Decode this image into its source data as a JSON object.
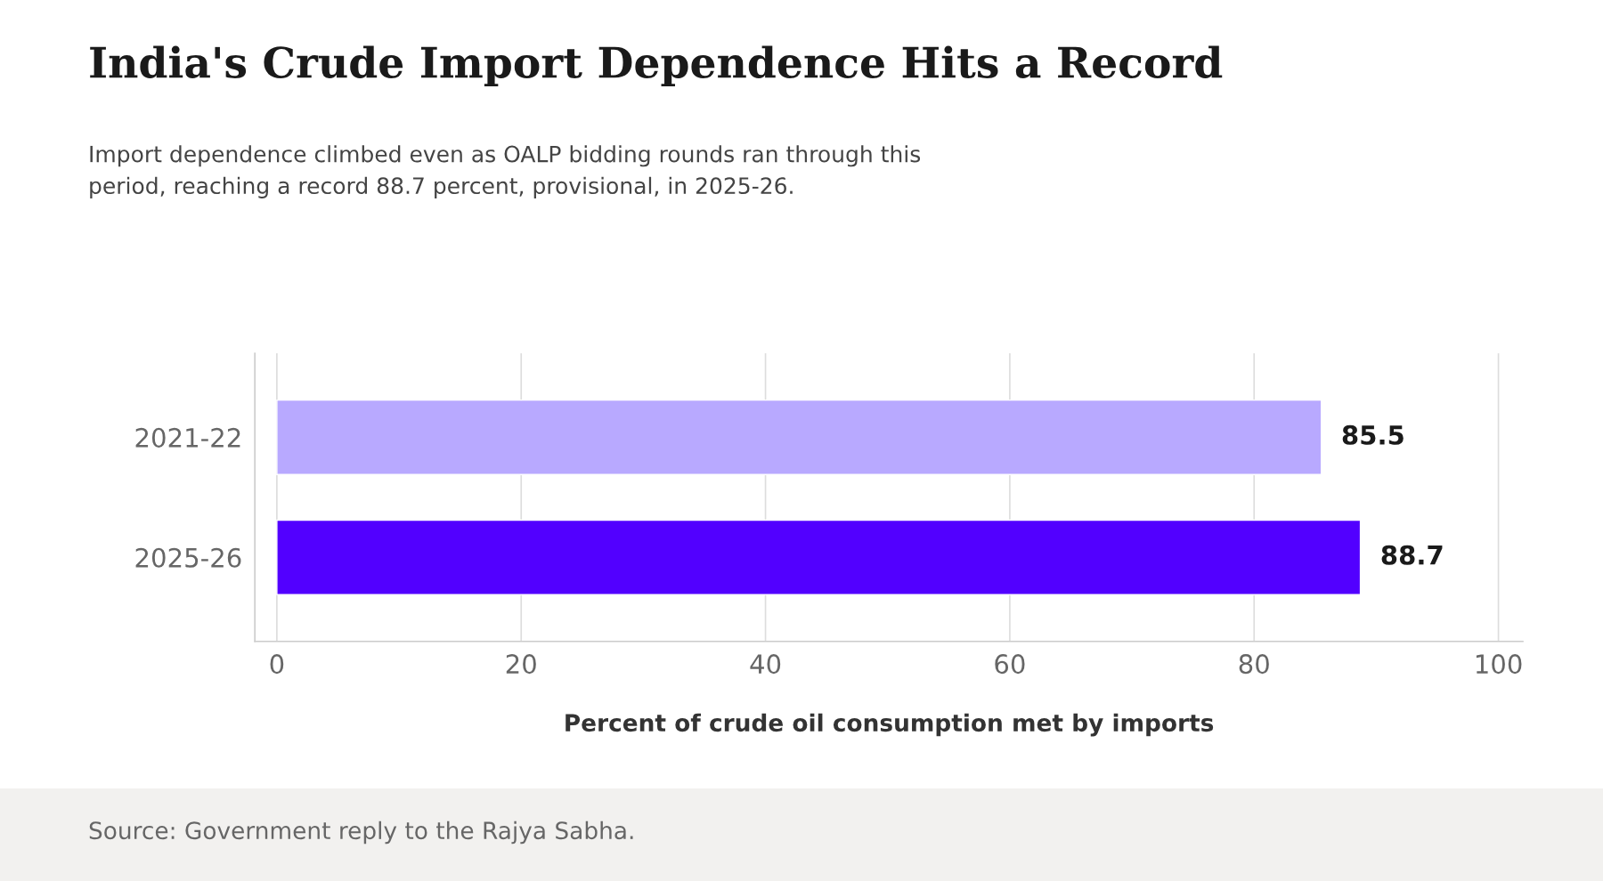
{
  "chart_data": {
    "type": "bar",
    "orientation": "horizontal",
    "title": "India's Crude Import Dependence Hits a Record",
    "subtitle": "Import dependence climbed even as OALP bidding rounds ran through this\nperiod, reaching a record 88.7 percent, provisional, in 2025-26.",
    "xlabel": "Percent of crude oil consumption met by imports",
    "categories": [
      "2021-22",
      "2025-26"
    ],
    "values": [
      85.5,
      88.7
    ],
    "colors": [
      "#b8a9ff",
      "#5200ff"
    ],
    "data_labels": true,
    "xlim": [
      -1.8,
      102
    ],
    "xticks": [
      0,
      20,
      40,
      60,
      80,
      100
    ],
    "grid": "x",
    "legend": false,
    "annotations": [
      "Source: Government reply to the Rajya Sabha."
    ]
  }
}
